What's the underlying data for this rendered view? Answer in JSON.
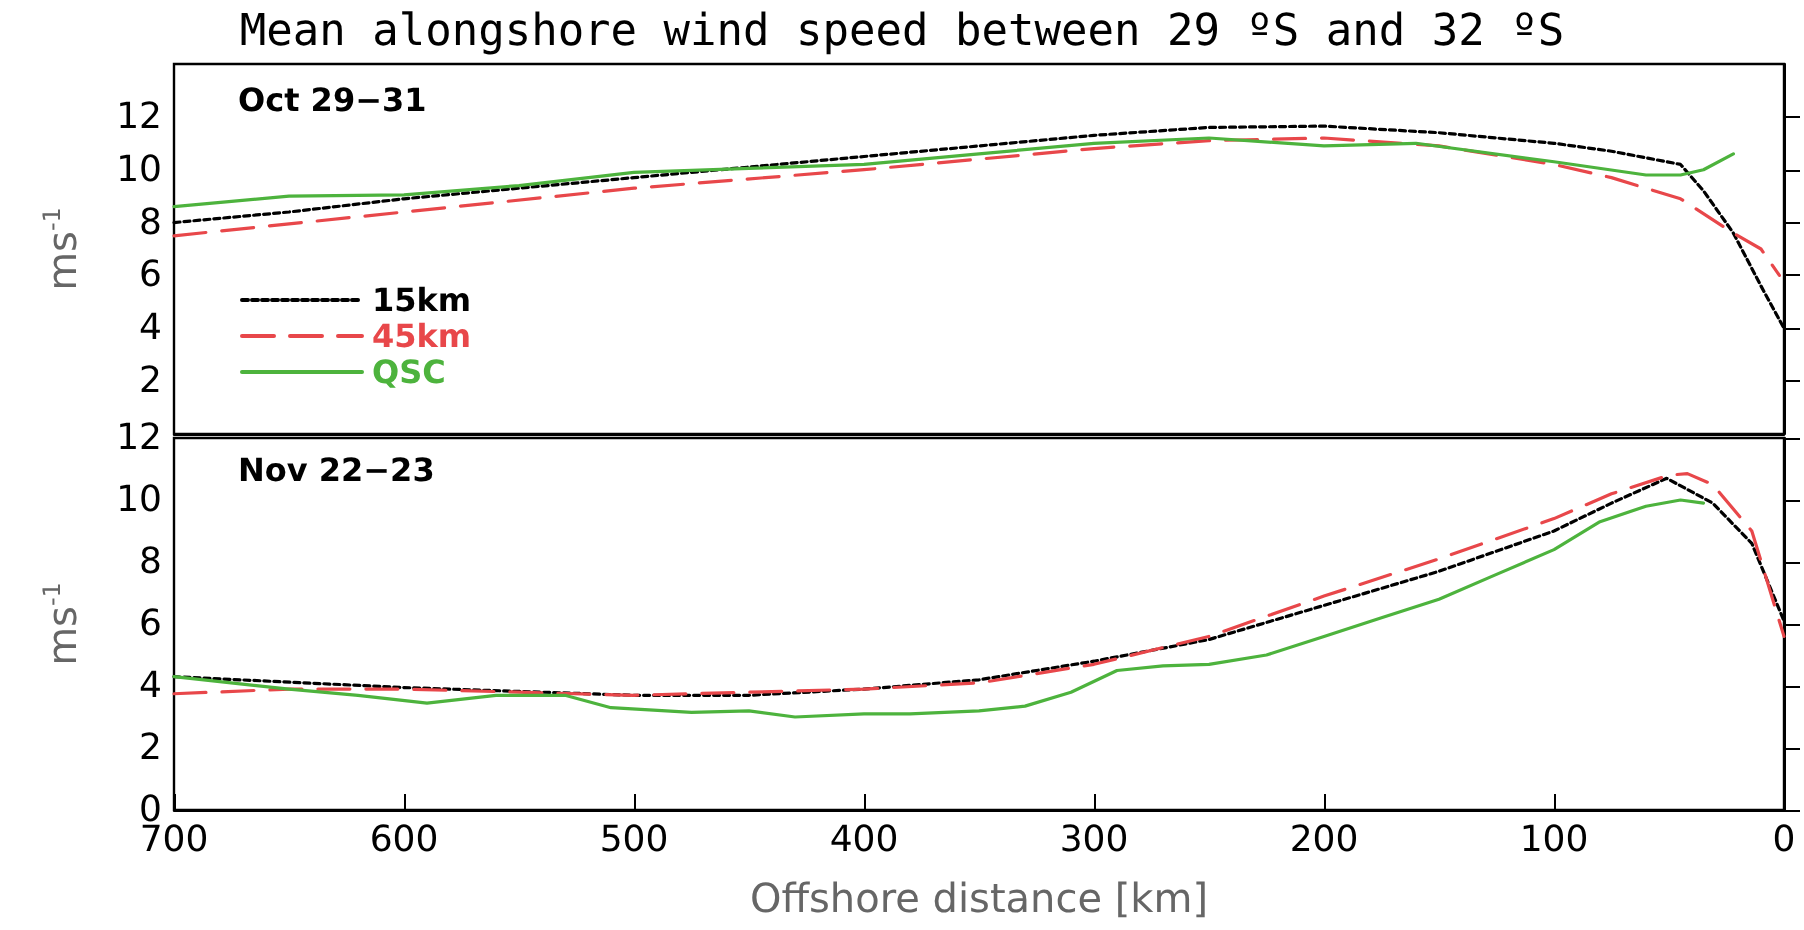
{
  "chart_data": [
    {
      "type": "line",
      "title": "Mean alongshore wind speed between 29 ºS and 32 ºS",
      "ylabel": "ms$^{-1}$",
      "annotations": [
        "Oct 29−31"
      ],
      "xlim": [
        700,
        0
      ],
      "ylim": [
        0,
        14
      ],
      "yticks": [
        2,
        4,
        6,
        8,
        10,
        12
      ],
      "tick_labels": "y",
      "legend": "bottom left",
      "grid": false,
      "series": [
        {
          "name": "15km",
          "color": "#000000",
          "line_style": "dotted",
          "x": [
            700,
            650,
            600,
            550,
            500,
            450,
            400,
            350,
            300,
            250,
            200,
            150,
            100,
            75,
            45,
            35,
            22,
            10,
            0
          ],
          "values": [
            8.0,
            8.4,
            8.9,
            9.3,
            9.7,
            10.1,
            10.5,
            10.9,
            11.3,
            11.6,
            11.65,
            11.4,
            11.0,
            10.7,
            10.2,
            9.2,
            7.6,
            5.6,
            4.0
          ]
        },
        {
          "name": "45km",
          "color": "#e8474a",
          "line_style": "dashed",
          "x": [
            700,
            600,
            500,
            400,
            300,
            250,
            200,
            150,
            100,
            75,
            45,
            22,
            10,
            2
          ],
          "values": [
            7.5,
            8.4,
            9.3,
            10.0,
            10.8,
            11.1,
            11.2,
            10.9,
            10.2,
            9.7,
            8.9,
            7.6,
            7.0,
            6.0
          ]
        },
        {
          "name": "QSC",
          "color": "#4db33d",
          "line_style": "solid",
          "x": [
            700,
            675,
            650,
            600,
            550,
            500,
            450,
            400,
            350,
            300,
            250,
            200,
            160,
            100,
            60,
            45,
            35,
            22
          ],
          "values": [
            8.6,
            8.8,
            9.0,
            9.05,
            9.4,
            9.9,
            10.05,
            10.2,
            10.6,
            11.0,
            11.2,
            10.9,
            11.0,
            10.3,
            9.8,
            9.8,
            10.0,
            10.6
          ]
        }
      ]
    },
    {
      "type": "line",
      "xlabel": "Offshore distance [km]",
      "ylabel": "ms$^{-1}$",
      "annotations": [
        "Nov 22−23"
      ],
      "xlim": [
        700,
        0
      ],
      "xticks": [
        700,
        600,
        500,
        400,
        300,
        200,
        100,
        0
      ],
      "ylim": [
        0,
        12
      ],
      "yticks": [
        0,
        2,
        4,
        6,
        8,
        10,
        12
      ],
      "grid": false,
      "series": [
        {
          "color": "#000000",
          "line_style": "dotted",
          "x": [
            700,
            600,
            500,
            450,
            400,
            350,
            300,
            250,
            200,
            150,
            100,
            75,
            51,
            31,
            14,
            0
          ],
          "values": [
            4.3,
            3.95,
            3.7,
            3.7,
            3.9,
            4.2,
            4.8,
            5.5,
            6.6,
            7.7,
            9.0,
            9.9,
            10.7,
            9.9,
            8.6,
            6.1
          ]
        },
        {
          "color": "#e8474a",
          "line_style": "dashed",
          "x": [
            700,
            650,
            600,
            500,
            400,
            350,
            300,
            250,
            200,
            150,
            100,
            75,
            50,
            42,
            31,
            14,
            0
          ],
          "values": [
            3.75,
            3.9,
            3.9,
            3.7,
            3.9,
            4.1,
            4.7,
            5.6,
            6.9,
            8.1,
            9.4,
            10.2,
            10.8,
            10.85,
            10.5,
            9.0,
            5.6
          ]
        },
        {
          "color": "#4db33d",
          "line_style": "solid",
          "x": [
            700,
            650,
            620,
            590,
            560,
            530,
            510,
            475,
            450,
            430,
            400,
            380,
            350,
            330,
            310,
            290,
            270,
            250,
            225,
            200,
            175,
            150,
            125,
            100,
            80,
            60,
            45,
            35
          ],
          "values": [
            4.3,
            3.9,
            3.7,
            3.45,
            3.7,
            3.7,
            3.3,
            3.15,
            3.2,
            3.0,
            3.1,
            3.1,
            3.2,
            3.35,
            3.8,
            4.5,
            4.65,
            4.7,
            5.0,
            5.6,
            6.2,
            6.8,
            7.6,
            8.4,
            9.3,
            9.8,
            10.0,
            9.9
          ]
        }
      ]
    }
  ]
}
